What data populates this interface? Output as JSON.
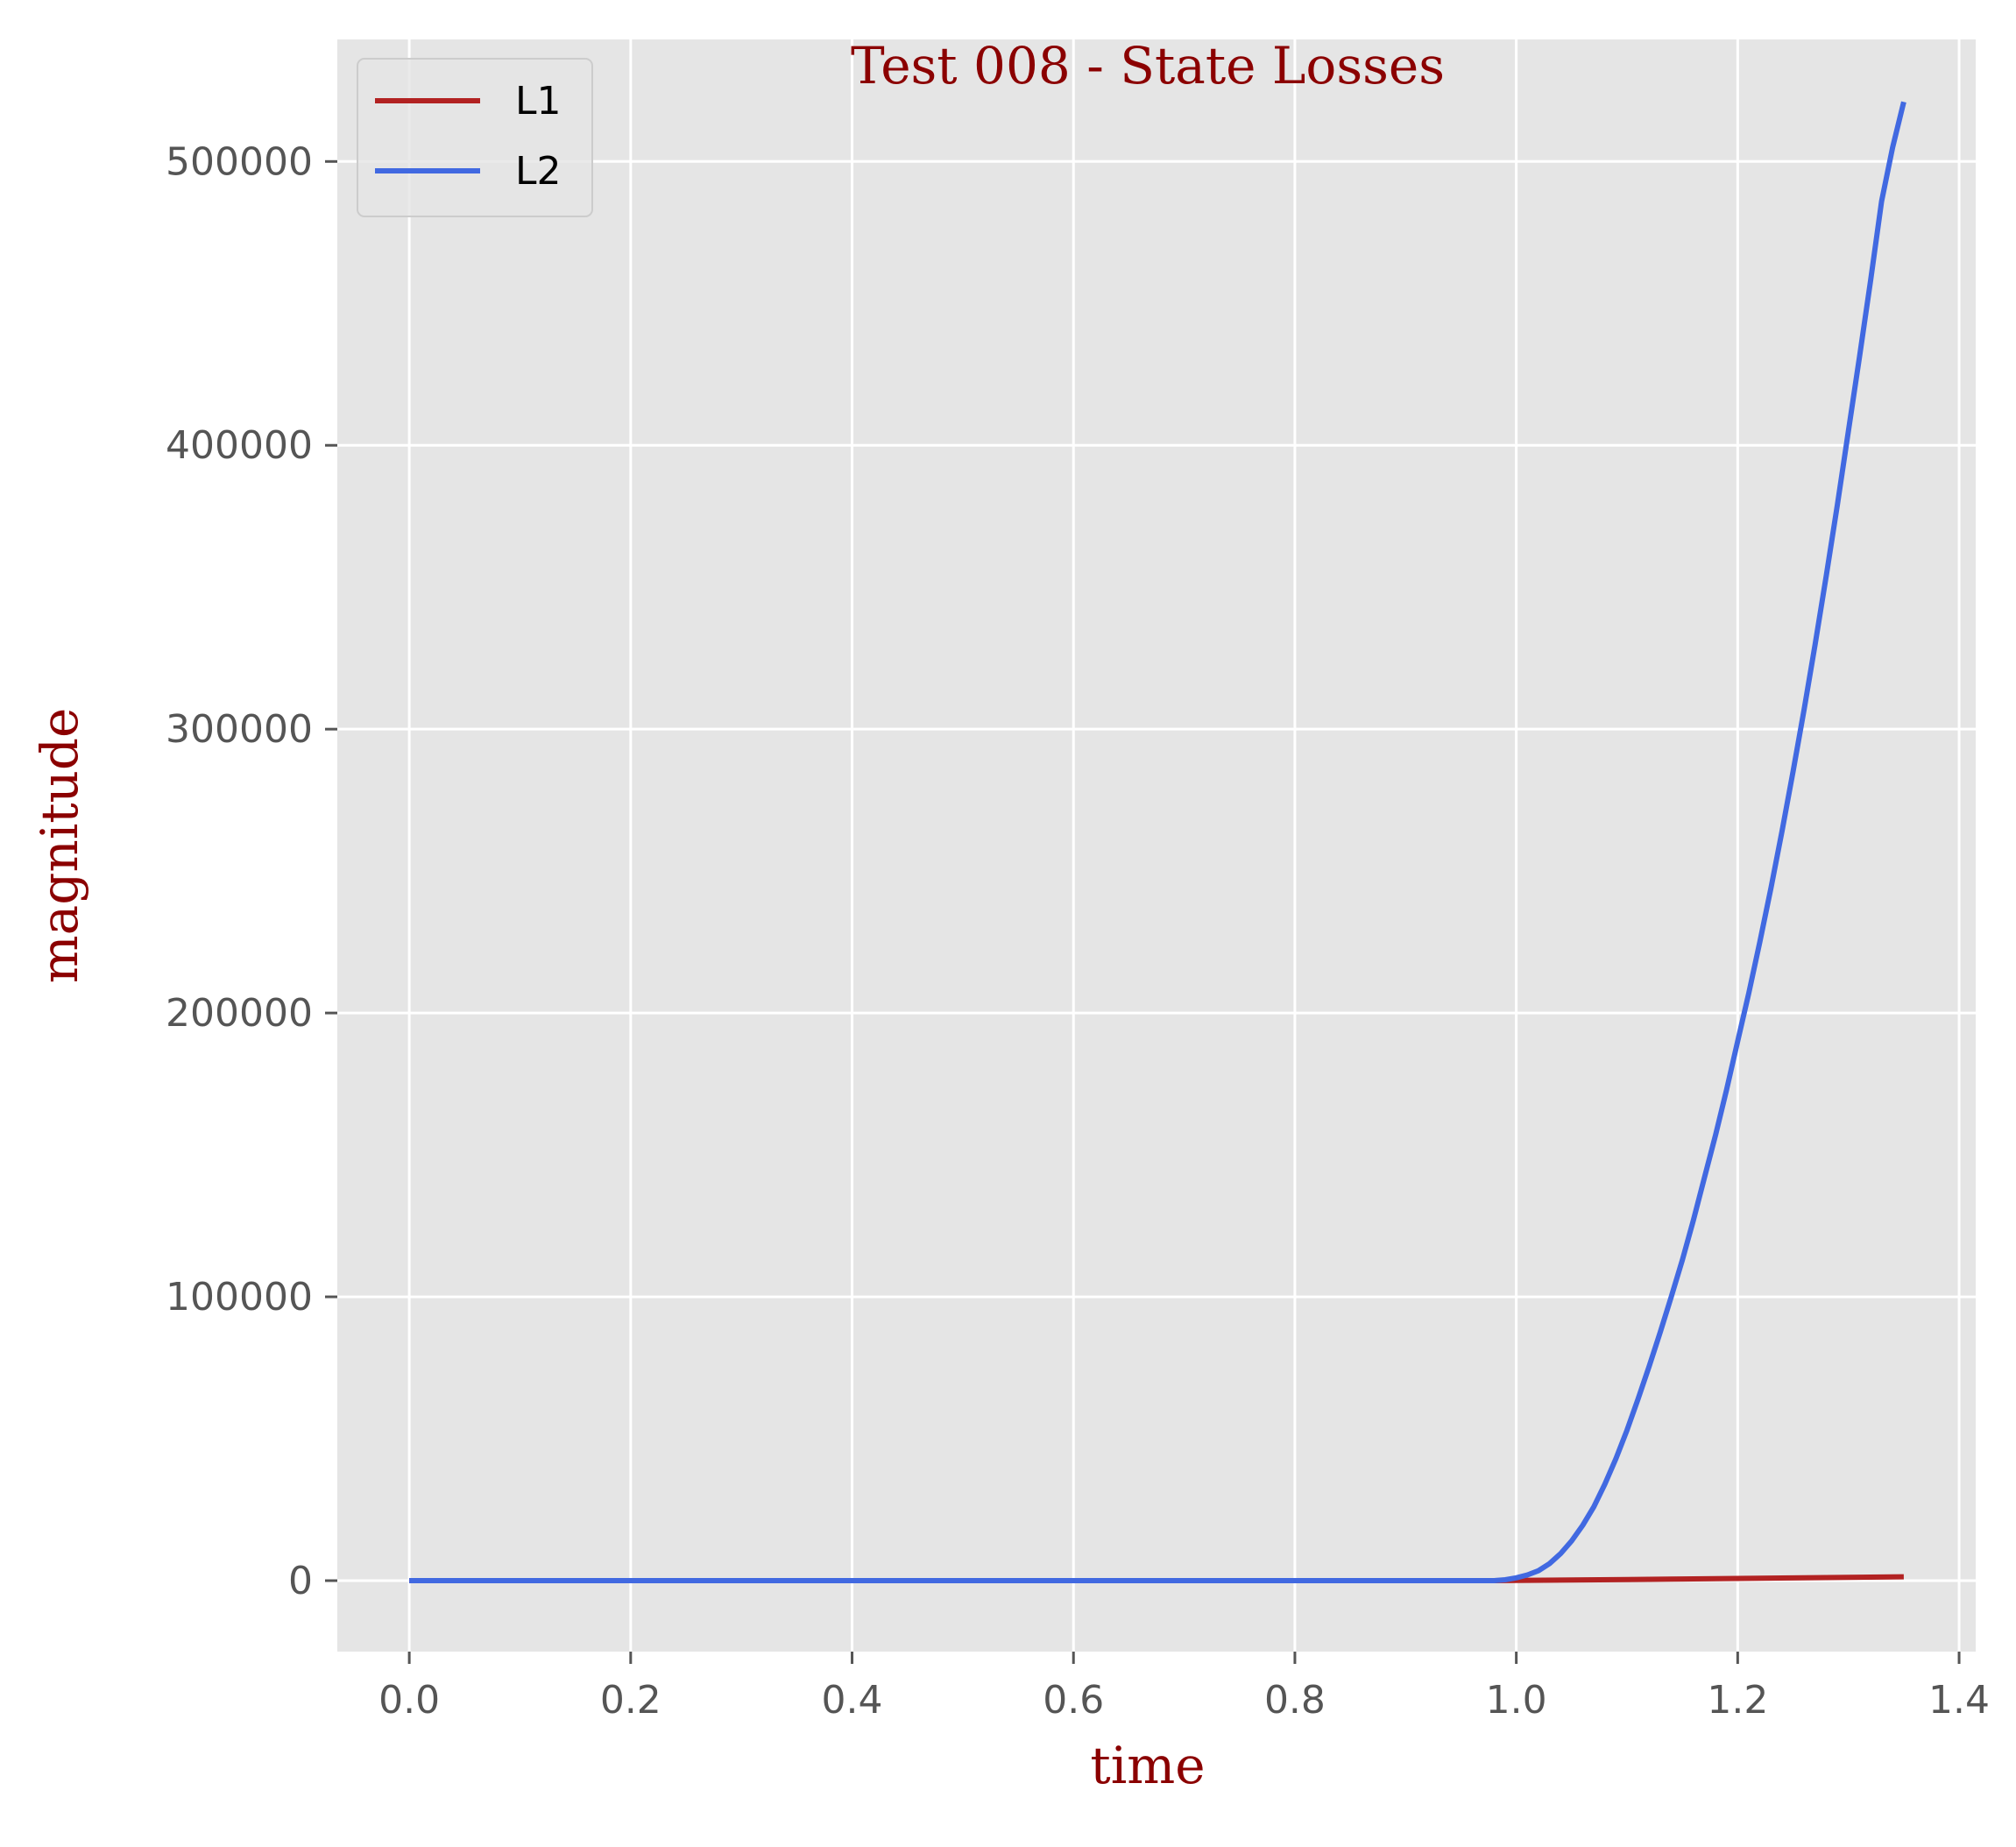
{
  "chart_data": {
    "type": "line",
    "title": "Test 008 - State Losses",
    "xlabel": "time",
    "ylabel": "magnitude",
    "xlim": [
      -0.065,
      1.415
    ],
    "ylim": [
      -25000,
      543000
    ],
    "xticks": [
      0.0,
      0.2,
      0.4,
      0.6,
      0.8,
      1.0,
      1.2,
      1.4
    ],
    "xtick_labels": [
      "0.0",
      "0.2",
      "0.4",
      "0.6",
      "0.8",
      "1.0",
      "1.2",
      "1.4"
    ],
    "yticks": [
      0,
      100000,
      200000,
      300000,
      400000,
      500000
    ],
    "ytick_labels": [
      "0",
      "100000",
      "200000",
      "300000",
      "400000",
      "500000"
    ],
    "grid": true,
    "legend_position": "top-left",
    "background_color": "#e5e5e5",
    "grid_color": "#ffffff",
    "series": [
      {
        "name": "L1",
        "color": "#b22222",
        "x": [
          0.0,
          0.98,
          1.0,
          1.05,
          1.1,
          1.15,
          1.2,
          1.25,
          1.3,
          1.35
        ],
        "y": [
          0,
          0,
          80,
          250,
          420,
          600,
          780,
          960,
          1150,
          1350
        ]
      },
      {
        "name": "L2",
        "color": "#4169e1",
        "x": [
          0.0,
          0.98,
          0.99,
          1.0,
          1.01,
          1.02,
          1.03,
          1.04,
          1.05,
          1.06,
          1.07,
          1.08,
          1.09,
          1.1,
          1.11,
          1.12,
          1.13,
          1.14,
          1.15,
          1.16,
          1.17,
          1.18,
          1.19,
          1.2,
          1.21,
          1.22,
          1.23,
          1.24,
          1.25,
          1.26,
          1.27,
          1.28,
          1.29,
          1.3,
          1.31,
          1.32,
          1.33,
          1.34,
          1.35
        ],
        "y": [
          0,
          0,
          300,
          1000,
          2000,
          3500,
          6000,
          9500,
          14000,
          19500,
          26000,
          34000,
          43000,
          53000,
          64000,
          75500,
          87500,
          100000,
          113000,
          127000,
          142000,
          157000,
          173000,
          190000,
          207000,
          225000,
          244000,
          264000,
          285000,
          307000,
          330000,
          354000,
          379000,
          405000,
          431000,
          458000,
          486000,
          505000,
          521000
        ]
      }
    ]
  }
}
